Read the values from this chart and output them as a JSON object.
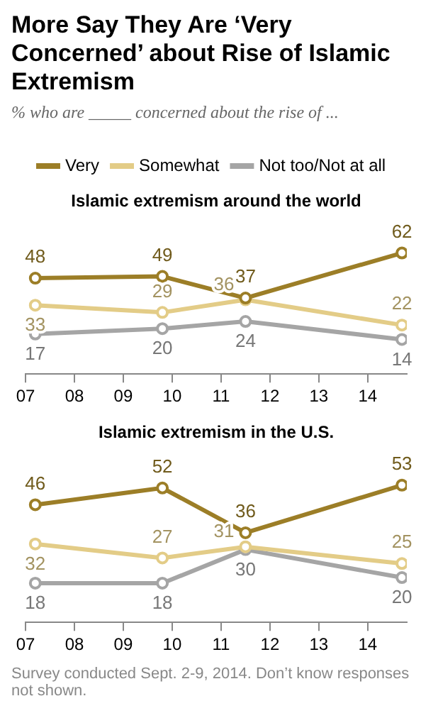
{
  "chart_data": [
    {
      "type": "other",
      "title": "More Say They Are ‘Very Concerned’ about Rise of Islamic Extremism",
      "subtitle": "% who are _____ concerned about the rise of ..."
    },
    {
      "type": "line",
      "title": "Islamic extremism around the world",
      "x": [
        2007.2,
        2009.8,
        2011.5,
        2014.7
      ],
      "xlim": [
        2007,
        2014.8
      ],
      "xticks": [
        {
          "value": 2007,
          "label": "07"
        },
        {
          "value": 2008,
          "label": "08"
        },
        {
          "value": 2009,
          "label": "09"
        },
        {
          "value": 2010,
          "label": "10"
        },
        {
          "value": 2011,
          "label": "11"
        },
        {
          "value": 2012,
          "label": "12"
        },
        {
          "value": 2013,
          "label": "13"
        },
        {
          "value": 2014,
          "label": "14"
        }
      ],
      "tick_labels": "x",
      "legend": "top",
      "marker": "circle",
      "data_labels": true,
      "grid": false,
      "series": [
        {
          "name": "Very",
          "color": "#9c7e27",
          "values": [
            48,
            49,
            37,
            62
          ]
        },
        {
          "name": "Somewhat",
          "color": "#e3cc87",
          "values": [
            33,
            29,
            36,
            22
          ]
        },
        {
          "name": "Not too/Not at all",
          "color": "#a5a5a5",
          "values": [
            17,
            20,
            24,
            14
          ]
        }
      ]
    },
    {
      "type": "line",
      "title": "Islamic extremism in the U.S.",
      "x": [
        2007.2,
        2009.8,
        2011.5,
        2014.7
      ],
      "xlim": [
        2007,
        2014.8
      ],
      "xticks": [
        {
          "value": 2007,
          "label": "07"
        },
        {
          "value": 2008,
          "label": "08"
        },
        {
          "value": 2009,
          "label": "09"
        },
        {
          "value": 2010,
          "label": "10"
        },
        {
          "value": 2011,
          "label": "11"
        },
        {
          "value": 2012,
          "label": "12"
        },
        {
          "value": 2013,
          "label": "13"
        },
        {
          "value": 2014,
          "label": "14"
        }
      ],
      "tick_labels": "x",
      "legend": false,
      "marker": "circle",
      "data_labels": true,
      "grid": false,
      "series": [
        {
          "color": "#9c7e27",
          "values": [
            46,
            52,
            36,
            53
          ]
        },
        {
          "color": "#e3cc87",
          "values": [
            32,
            27,
            31,
            25
          ]
        },
        {
          "color": "#a5a5a5",
          "values": [
            18,
            18,
            30,
            20
          ]
        }
      ],
      "annotations": [
        "Survey conducted Sept. 2-9, 2014. Don’t know responses not shown."
      ]
    }
  ]
}
